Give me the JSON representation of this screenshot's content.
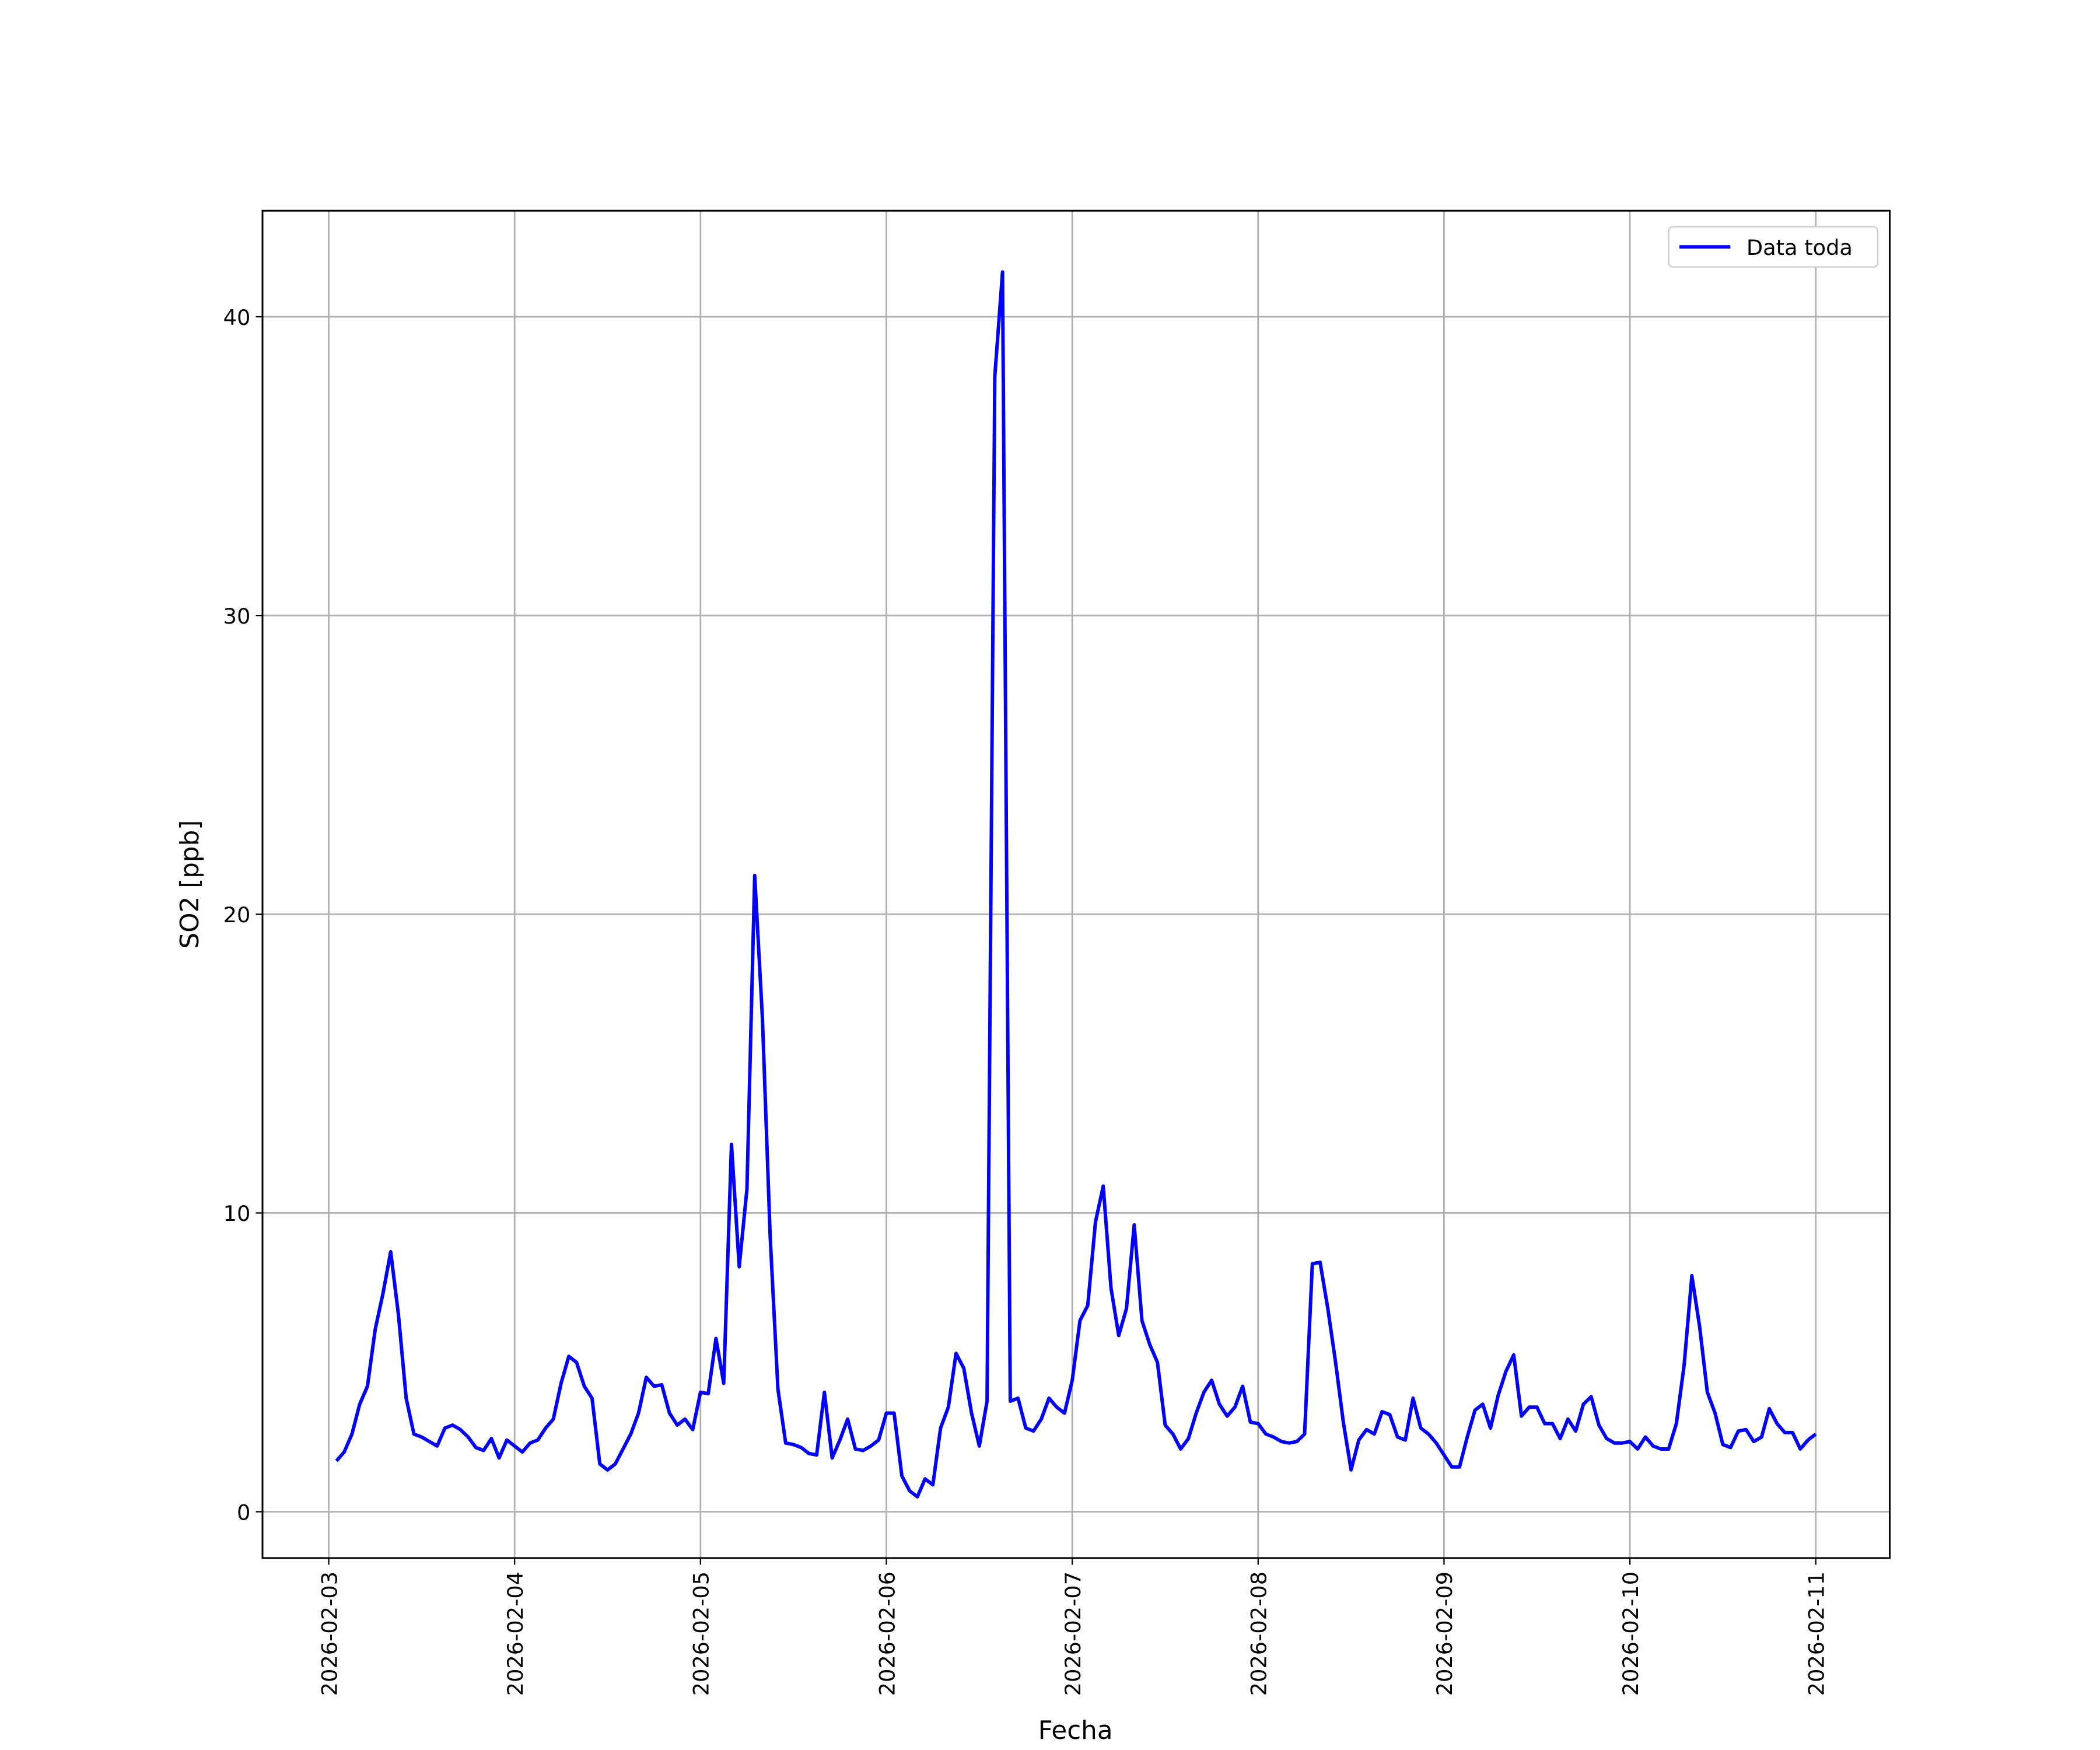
{
  "chart_data": {
    "type": "line",
    "x_label": "Fecha",
    "y_label": "SO2 [ppb]",
    "x": [
      "2026-02-03 01:00",
      "2026-02-03 02:00",
      "2026-02-03 03:00",
      "2026-02-03 04:00",
      "2026-02-03 05:00",
      "2026-02-03 06:00",
      "2026-02-03 07:00",
      "2026-02-03 08:00",
      "2026-02-03 09:00",
      "2026-02-03 10:00",
      "2026-02-03 11:00",
      "2026-02-03 12:00",
      "2026-02-03 13:00",
      "2026-02-03 14:00",
      "2026-02-03 15:00",
      "2026-02-03 16:00",
      "2026-02-03 17:00",
      "2026-02-03 18:00",
      "2026-02-03 19:00",
      "2026-02-03 20:00",
      "2026-02-03 21:00",
      "2026-02-03 22:00",
      "2026-02-03 23:00",
      "2026-02-04 00:00",
      "2026-02-04 01:00",
      "2026-02-04 02:00",
      "2026-02-04 03:00",
      "2026-02-04 04:00",
      "2026-02-04 05:00",
      "2026-02-04 06:00",
      "2026-02-04 07:00",
      "2026-02-04 08:00",
      "2026-02-04 09:00",
      "2026-02-04 10:00",
      "2026-02-04 11:00",
      "2026-02-04 12:00",
      "2026-02-04 13:00",
      "2026-02-04 14:00",
      "2026-02-04 15:00",
      "2026-02-04 16:00",
      "2026-02-04 17:00",
      "2026-02-04 18:00",
      "2026-02-04 19:00",
      "2026-02-04 20:00",
      "2026-02-04 21:00",
      "2026-02-04 22:00",
      "2026-02-04 23:00",
      "2026-02-05 00:00",
      "2026-02-05 01:00",
      "2026-02-05 02:00",
      "2026-02-05 03:00",
      "2026-02-05 04:00",
      "2026-02-05 05:00",
      "2026-02-05 06:00",
      "2026-02-05 07:00",
      "2026-02-05 08:00",
      "2026-02-05 09:00",
      "2026-02-05 10:00",
      "2026-02-05 11:00",
      "2026-02-05 12:00",
      "2026-02-05 13:00",
      "2026-02-05 14:00",
      "2026-02-05 15:00",
      "2026-02-05 16:00",
      "2026-02-05 17:00",
      "2026-02-05 18:00",
      "2026-02-05 19:00",
      "2026-02-05 20:00",
      "2026-02-05 21:00",
      "2026-02-05 22:00",
      "2026-02-05 23:00",
      "2026-02-06 00:00",
      "2026-02-06 01:00",
      "2026-02-06 02:00",
      "2026-02-06 03:00",
      "2026-02-06 04:00",
      "2026-02-06 05:00",
      "2026-02-06 06:00",
      "2026-02-06 07:00",
      "2026-02-06 08:00",
      "2026-02-06 09:00",
      "2026-02-06 10:00",
      "2026-02-06 11:00",
      "2026-02-06 12:00",
      "2026-02-06 13:00",
      "2026-02-06 14:00",
      "2026-02-06 15:00",
      "2026-02-06 16:00",
      "2026-02-06 17:00",
      "2026-02-06 18:00",
      "2026-02-06 19:00",
      "2026-02-06 20:00",
      "2026-02-06 21:00",
      "2026-02-06 22:00",
      "2026-02-06 23:00",
      "2026-02-07 00:00",
      "2026-02-07 01:00",
      "2026-02-07 02:00",
      "2026-02-07 03:00",
      "2026-02-07 04:00",
      "2026-02-07 05:00",
      "2026-02-07 06:00",
      "2026-02-07 07:00",
      "2026-02-07 08:00",
      "2026-02-07 09:00",
      "2026-02-07 10:00",
      "2026-02-07 11:00",
      "2026-02-07 12:00",
      "2026-02-07 13:00",
      "2026-02-07 14:00",
      "2026-02-07 15:00",
      "2026-02-07 16:00",
      "2026-02-07 17:00",
      "2026-02-07 18:00",
      "2026-02-07 19:00",
      "2026-02-07 20:00",
      "2026-02-07 21:00",
      "2026-02-07 22:00",
      "2026-02-07 23:00",
      "2026-02-08 00:00",
      "2026-02-08 01:00",
      "2026-02-08 02:00",
      "2026-02-08 03:00",
      "2026-02-08 04:00",
      "2026-02-08 05:00",
      "2026-02-08 06:00",
      "2026-02-08 07:00",
      "2026-02-08 08:00",
      "2026-02-08 09:00",
      "2026-02-08 10:00",
      "2026-02-08 11:00",
      "2026-02-08 12:00",
      "2026-02-08 13:00",
      "2026-02-08 14:00",
      "2026-02-08 15:00",
      "2026-02-08 16:00",
      "2026-02-08 17:00",
      "2026-02-08 18:00",
      "2026-02-08 19:00",
      "2026-02-08 20:00",
      "2026-02-08 21:00",
      "2026-02-08 22:00",
      "2026-02-08 23:00",
      "2026-02-09 00:00",
      "2026-02-09 01:00",
      "2026-02-09 02:00",
      "2026-02-09 03:00",
      "2026-02-09 04:00",
      "2026-02-09 05:00",
      "2026-02-09 06:00",
      "2026-02-09 07:00",
      "2026-02-09 08:00",
      "2026-02-09 09:00",
      "2026-02-09 10:00",
      "2026-02-09 11:00",
      "2026-02-09 12:00",
      "2026-02-09 13:00",
      "2026-02-09 14:00",
      "2026-02-09 15:00",
      "2026-02-09 16:00",
      "2026-02-09 17:00",
      "2026-02-09 18:00",
      "2026-02-09 19:00",
      "2026-02-09 20:00",
      "2026-02-09 21:00",
      "2026-02-09 22:00",
      "2026-02-09 23:00",
      "2026-02-10 00:00",
      "2026-02-10 01:00",
      "2026-02-10 02:00",
      "2026-02-10 03:00",
      "2026-02-10 04:00",
      "2026-02-10 05:00",
      "2026-02-10 06:00",
      "2026-02-10 07:00",
      "2026-02-10 08:00",
      "2026-02-10 09:00",
      "2026-02-10 10:00",
      "2026-02-10 11:00",
      "2026-02-10 12:00",
      "2026-02-10 13:00",
      "2026-02-10 14:00",
      "2026-02-10 15:00",
      "2026-02-10 16:00",
      "2026-02-10 17:00",
      "2026-02-10 18:00",
      "2026-02-10 19:00",
      "2026-02-10 20:00",
      "2026-02-10 21:00",
      "2026-02-10 22:00",
      "2026-02-10 23:00",
      "2026-02-11 00:00"
    ],
    "series": [
      {
        "name": "Data toda",
        "color": "#0000ff",
        "values": [
          1.7,
          2.0,
          2.6,
          3.6,
          4.2,
          6.1,
          7.3,
          8.7,
          6.6,
          3.8,
          2.6,
          2.5,
          2.35,
          2.2,
          2.8,
          2.9,
          2.75,
          2.5,
          2.15,
          2.05,
          2.45,
          1.8,
          2.4,
          2.2,
          2.0,
          2.3,
          2.4,
          2.8,
          3.1,
          4.3,
          5.2,
          5.0,
          4.2,
          3.8,
          1.6,
          1.4,
          1.6,
          2.1,
          2.6,
          3.3,
          4.5,
          4.2,
          4.25,
          3.3,
          2.9,
          3.1,
          2.75,
          4.0,
          3.95,
          5.8,
          4.3,
          12.3,
          8.2,
          10.8,
          21.3,
          16.5,
          9.2,
          4.1,
          2.3,
          2.25,
          2.15,
          1.95,
          1.9,
          4.0,
          1.8,
          2.4,
          3.1,
          2.1,
          2.05,
          2.2,
          2.4,
          3.3,
          3.3,
          1.2,
          0.7,
          0.5,
          1.1,
          0.9,
          2.8,
          3.5,
          5.3,
          4.8,
          3.3,
          2.2,
          3.7,
          38.0,
          41.5,
          3.7,
          3.8,
          2.8,
          2.7,
          3.1,
          3.8,
          3.5,
          3.3,
          4.4,
          6.4,
          6.9,
          9.7,
          10.9,
          7.5,
          5.9,
          6.8,
          9.6,
          6.4,
          5.6,
          5.0,
          2.9,
          2.6,
          2.1,
          2.45,
          3.3,
          4.0,
          4.4,
          3.6,
          3.2,
          3.5,
          4.2,
          3.0,
          2.95,
          2.6,
          2.5,
          2.35,
          2.3,
          2.35,
          2.6,
          8.3,
          8.35,
          6.8,
          5.0,
          3.0,
          1.4,
          2.4,
          2.75,
          2.6,
          3.35,
          3.25,
          2.5,
          2.4,
          3.8,
          2.8,
          2.6,
          2.3,
          1.9,
          1.5,
          1.5,
          2.5,
          3.4,
          3.6,
          2.8,
          3.9,
          4.7,
          5.25,
          3.2,
          3.5,
          3.5,
          2.95,
          2.95,
          2.45,
          3.1,
          2.7,
          3.6,
          3.85,
          2.9,
          2.45,
          2.3,
          2.3,
          2.35,
          2.1,
          2.5,
          2.2,
          2.1,
          2.1,
          2.95,
          4.9,
          7.9,
          6.2,
          4.0,
          3.3,
          2.25,
          2.15,
          2.7,
          2.75,
          2.35,
          2.5,
          3.45,
          2.95,
          2.65,
          2.65,
          2.1,
          2.4,
          2.6
        ]
      }
    ],
    "xlim": [
      "2026-02-02 15:27",
      "2026-02-11 09:33"
    ],
    "xticks": [
      "2026-02-03",
      "2026-02-04",
      "2026-02-05",
      "2026-02-06",
      "2026-02-07",
      "2026-02-08",
      "2026-02-09",
      "2026-02-10",
      "2026-02-11"
    ],
    "ylim": [
      -1.55,
      43.55
    ],
    "yticks": [
      0,
      10,
      20,
      30,
      40
    ],
    "grid": true,
    "legend": "upper right"
  }
}
